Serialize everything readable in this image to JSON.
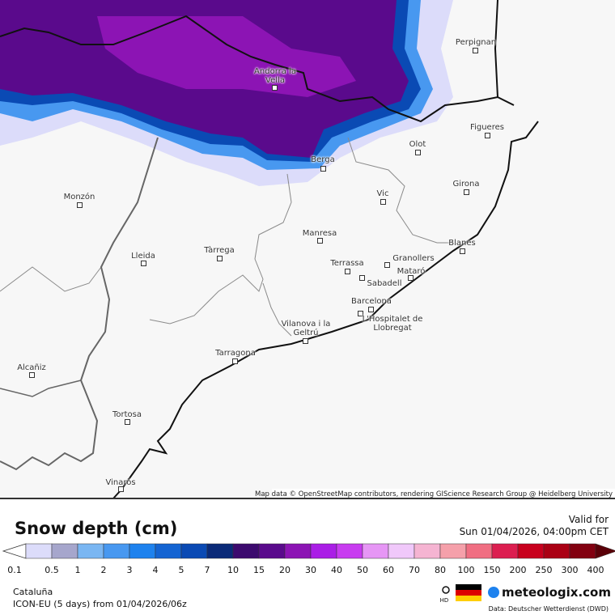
{
  "map": {
    "attribution": "Map data © OpenStreetMap contributors, rendering GIScience Research Group @ Heidelberg University",
    "cities": [
      "Perpignan",
      "Andorra la Vella",
      "Figueres",
      "Olot",
      "Berga",
      "Girona",
      "Vic",
      "Monzón",
      "Manresa",
      "Blanes",
      "Tàrrega",
      "Lleida",
      "Granollers",
      "Terrassa",
      "Mataró",
      "Sabadell",
      "Barcelona",
      "Vilanova i la Geltrú",
      "L'Hospitalet de Llobregat",
      "Tarragona",
      "Alcañiz",
      "Tortosa",
      "Vinaròs"
    ]
  },
  "legend": {
    "title": "Snow depth (cm)",
    "ticks": [
      0.1,
      0.5,
      1,
      2,
      3,
      4,
      5,
      7,
      10,
      15,
      20,
      30,
      40,
      50,
      60,
      70,
      80,
      100,
      150,
      200,
      250,
      300,
      400
    ],
    "colors": [
      "#dcdcfa",
      "#a6a6cc",
      "#7ab6f2",
      "#4898f0",
      "#1e82ee",
      "#1464d2",
      "#0a4ab4",
      "#0a2a78",
      "#3c0a6e",
      "#5a0a8c",
      "#8c14b4",
      "#aa1ee6",
      "#c83cf0",
      "#e696f5",
      "#f0c8fa",
      "#f5b4d2",
      "#f5a0aa",
      "#f06e82",
      "#dc1e50",
      "#c8001e",
      "#aa0014",
      "#820010"
    ],
    "over_color": "#5a0008"
  },
  "valid_label": "Valid for",
  "valid_time": "Sun 01/04/2026, 04:00pm CET",
  "region": "Cataluña",
  "model": "ICON-EU (5 days) from 01/04/2026/06z",
  "hd": "HD",
  "brand": "meteologix.com",
  "source": "Data: Deutscher Wetterdienst (DWD)"
}
